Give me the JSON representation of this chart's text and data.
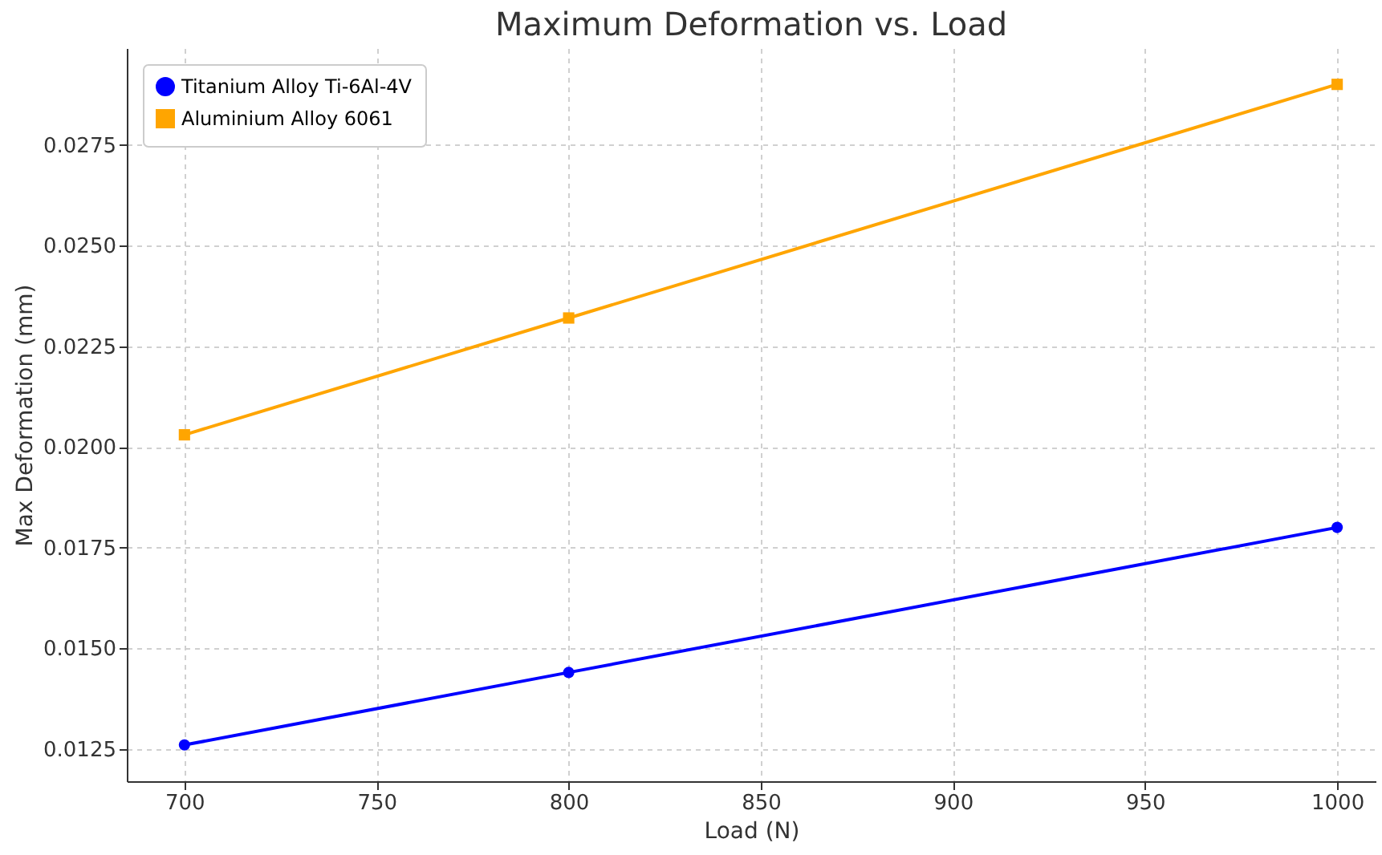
{
  "chart_data": {
    "type": "line",
    "title": "Maximum Deformation vs. Load",
    "xlabel": "Load (N)",
    "ylabel": "Max Deformation (mm)",
    "x": [
      700,
      800,
      1000
    ],
    "series": [
      {
        "name": "Titanium Alloy Ti-6Al-4V",
        "color": "#0000ff",
        "marker": "circle",
        "values": [
          0.0126,
          0.0144,
          0.018
        ]
      },
      {
        "name": "Aluminium Alloy 6061",
        "color": "#ffa500",
        "marker": "square",
        "values": [
          0.0203,
          0.0232,
          0.029
        ]
      }
    ],
    "xlim": [
      685,
      1010
    ],
    "xticks": [
      700,
      750,
      800,
      850,
      900,
      950,
      1000
    ],
    "ylim": [
      0.0117,
      0.0299
    ],
    "yticks": [
      0.0125,
      {
        "value": 0.015,
        "label": "0.0150"
      },
      0.0175,
      {
        "value": 0.02,
        "label": "0.0200"
      },
      0.0225,
      {
        "value": 0.025,
        "label": "0.0250"
      },
      0.0275
    ],
    "grid": true,
    "legend": "top left",
    "line_style": "solid"
  }
}
